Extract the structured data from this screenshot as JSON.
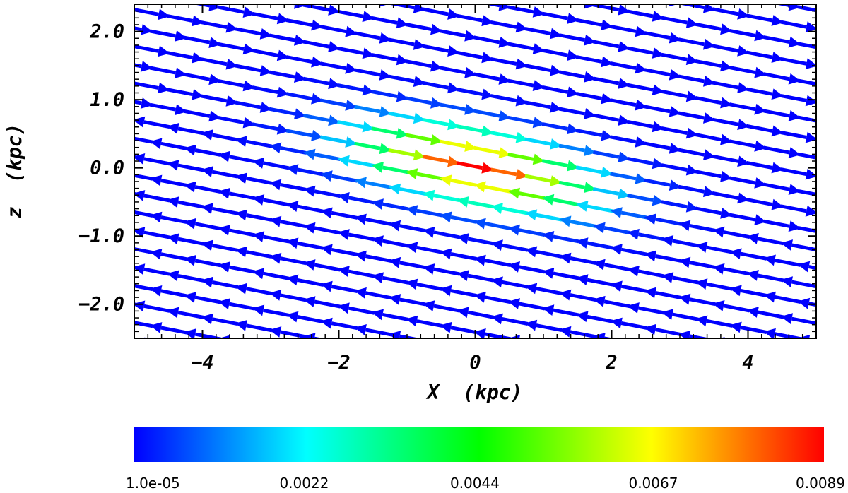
{
  "chart_data": {
    "type": "quiver",
    "xlabel": "X  (kpc)",
    "ylabel": "z  (kpc)",
    "xlim": [
      -5.0,
      5.0
    ],
    "ylim": [
      -2.5,
      2.4
    ],
    "x_ticks": [
      -4,
      -2,
      0,
      2,
      4
    ],
    "x_tick_labels": [
      "−4",
      "−2",
      "0",
      "2",
      "4"
    ],
    "y_ticks": [
      -2.0,
      -1.0,
      0.0,
      1.0,
      2.0
    ],
    "y_tick_labels": [
      "−2.0",
      "−1.0",
      "0.0",
      "1.0",
      "2.0"
    ],
    "field": {
      "description_of_mapping": "field lines slope downward with increasing X; arrows point +X above the tilted midplane and −X below it",
      "slope_dz_dx": -0.19,
      "midplane_offset": 0.02,
      "x_spacing": 0.5,
      "line_spacing": 0.27,
      "arrow_length_kpc": 0.55,
      "peak_magnitude": 0.0089,
      "min_magnitude": 1e-05,
      "core_scale_x": 1.1,
      "core_scale_perp": 0.35
    },
    "colorbar": {
      "min": 1e-05,
      "max": 0.0089,
      "tick_values": [
        1e-05,
        0.0022,
        0.0044,
        0.0067,
        0.0089
      ],
      "tick_labels": [
        "1.0e-05",
        "0.0022",
        "0.0044",
        "0.0067",
        "0.0089"
      ],
      "colors": [
        "#0000ff",
        "#00ffff",
        "#00ff00",
        "#ffff00",
        "#ff0000"
      ]
    }
  }
}
